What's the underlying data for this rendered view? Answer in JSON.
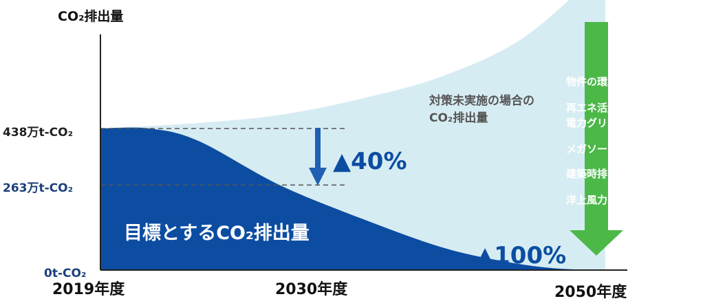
{
  "chart_data": {
    "type": "area",
    "ylabel": "CO₂排出量",
    "x_ticks": [
      "2019年度",
      "2030年度",
      "2050年度"
    ],
    "y_ticks": [
      "438万t-CO₂",
      "263万t-CO₂",
      "0t-CO₂"
    ],
    "y_tick_values": [
      438,
      263,
      0
    ],
    "series": [
      {
        "name": "対策未実施の場合の\nCO₂排出量",
        "name_lines": [
          "対策未実施の場合の",
          "CO₂排出量"
        ],
        "x": [
          2019,
          2025,
          2030,
          2035,
          2040,
          2045,
          2050
        ],
        "values": [
          438,
          455,
          480,
          530,
          600,
          720,
          940
        ],
        "color": "#d6ecf3"
      },
      {
        "name": "目標とするCO₂排出量",
        "x": [
          2019,
          2022,
          2025,
          2030,
          2035,
          2040,
          2044,
          2047,
          2050
        ],
        "values": [
          438,
          438,
          400,
          263,
          160,
          70,
          25,
          5,
          0
        ],
        "color": "#0c4da2"
      }
    ],
    "annotations": [
      {
        "label": "▲40%",
        "x": 2030
      },
      {
        "label": "▲100%",
        "x": 2050
      }
    ],
    "measures": [
      "物件の環境性能向上",
      "再エネ活用・",
      "電力グリーン化",
      "メガソーラー拡大",
      "建築時排出量削減、",
      "洋上風力・新技術など"
    ],
    "colors": {
      "target": "#0c4da2",
      "baseline": "#d6ecf3",
      "arrow": "#4cb848",
      "measure_text": "#ffffff",
      "label_dark": "#1c3f7a",
      "annotation": "#0c4da2"
    }
  }
}
